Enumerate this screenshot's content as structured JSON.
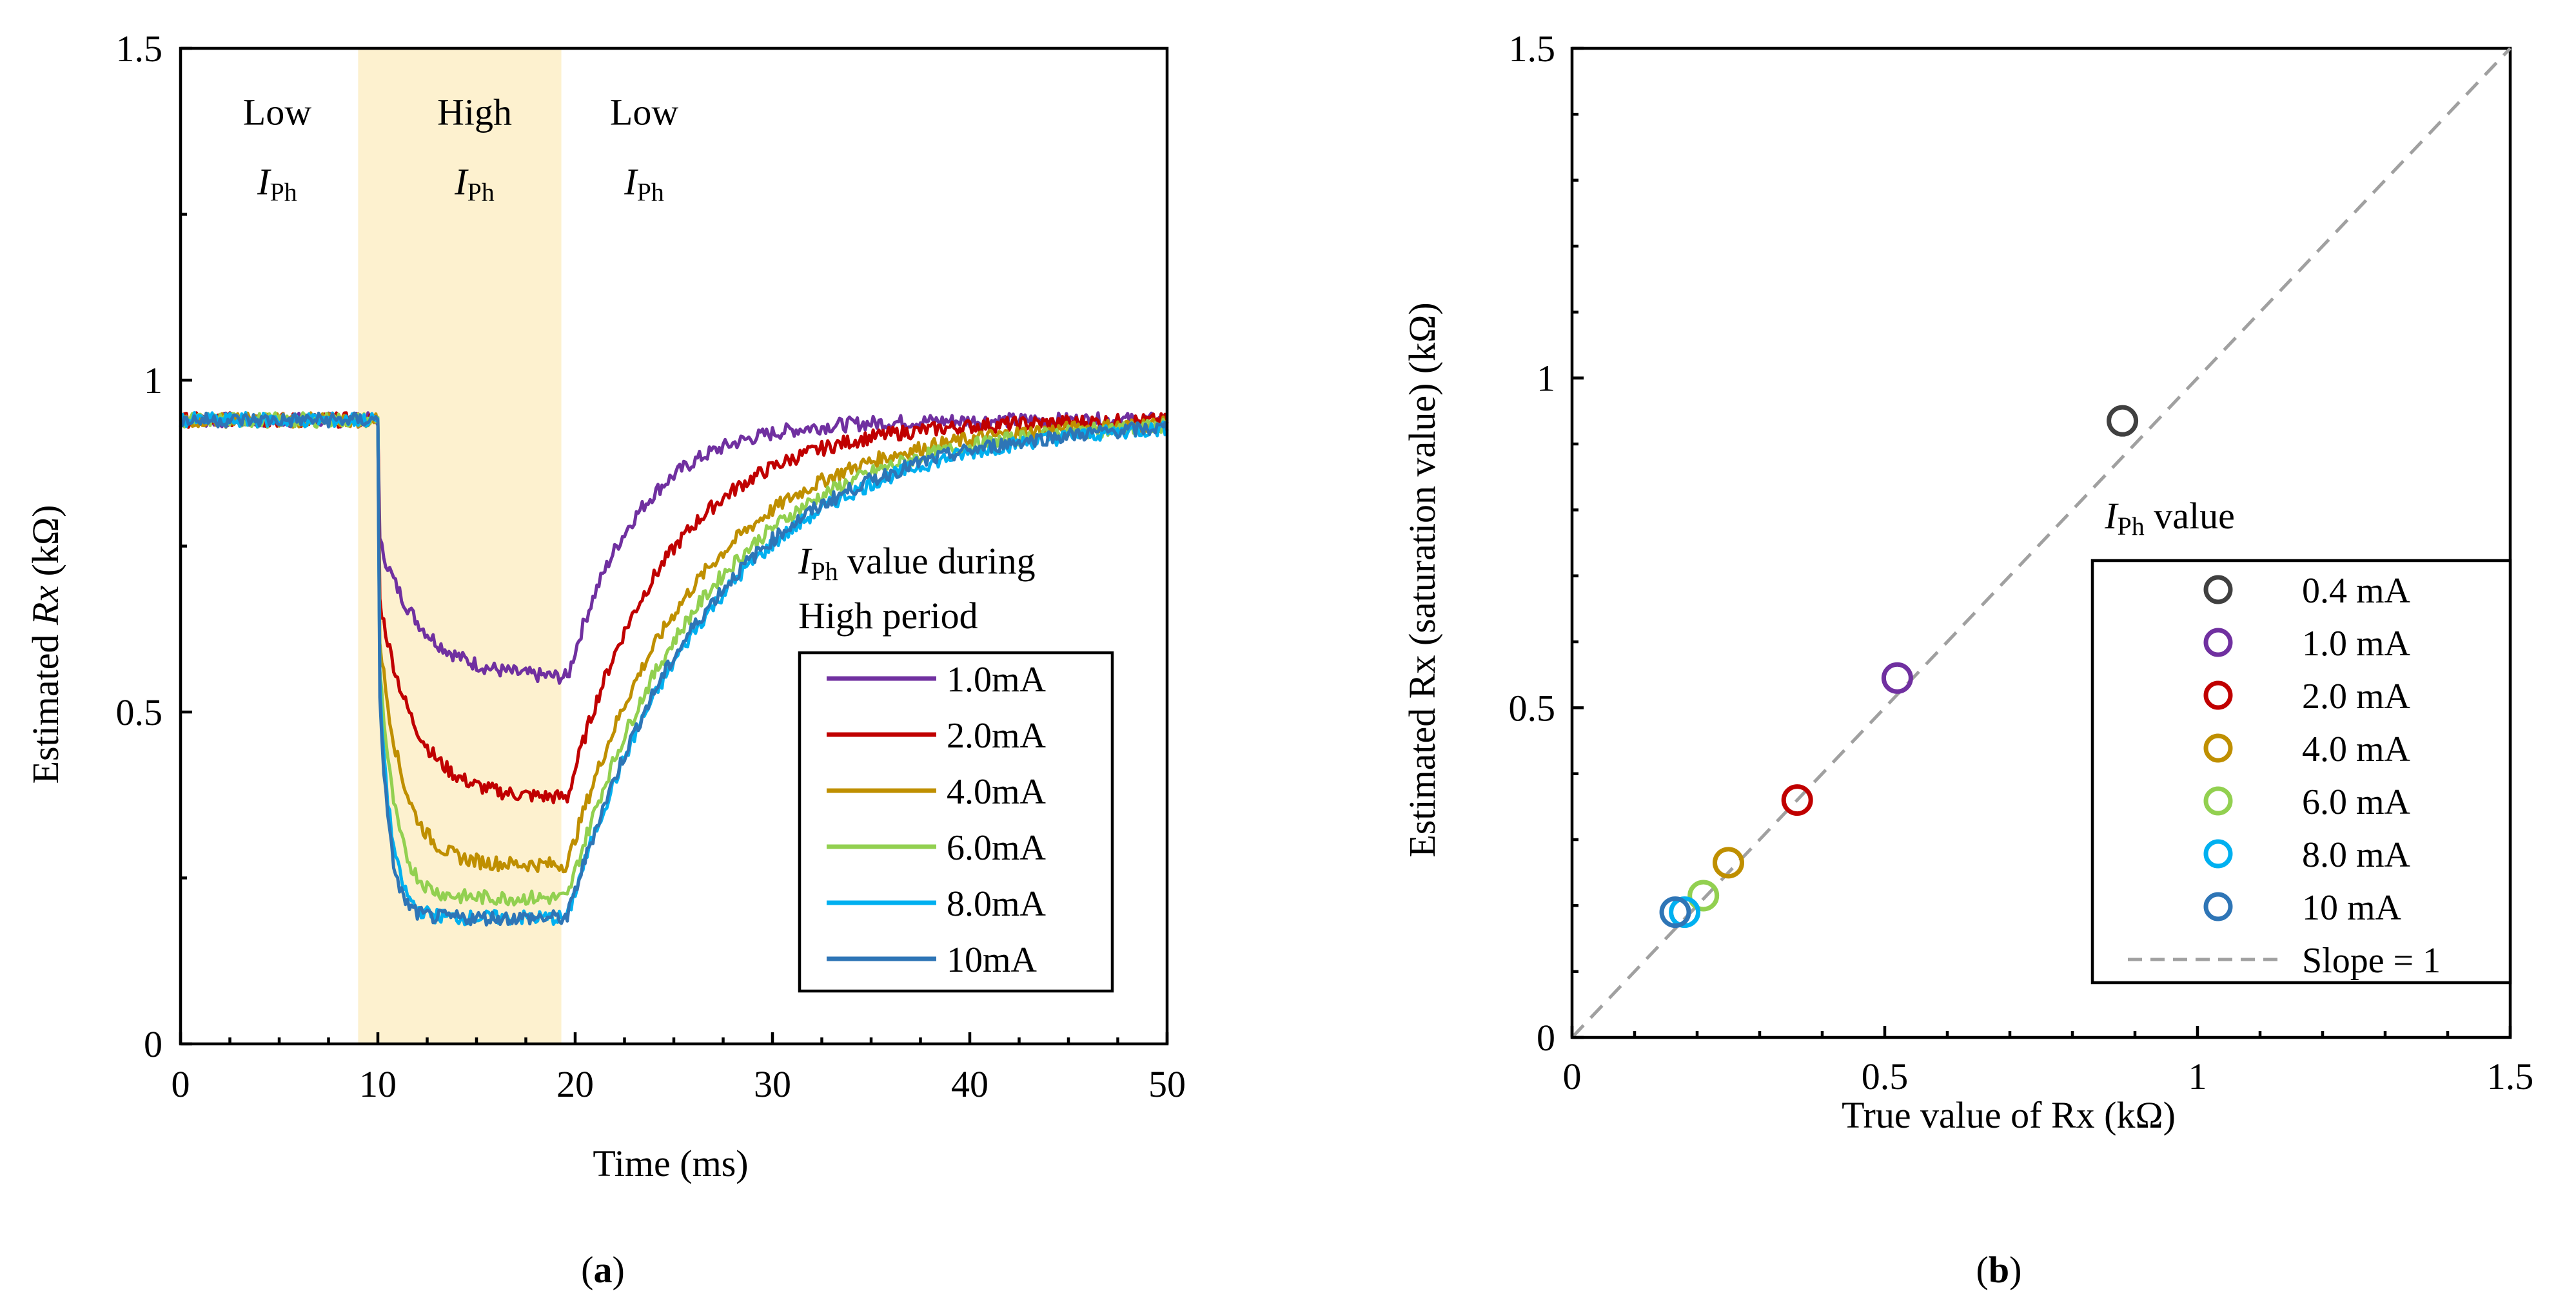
{
  "chart_data": [
    {
      "id": "a",
      "type": "line",
      "panel_label": "a",
      "xlabel": "Time (ms)",
      "ylabel_prefix": "Estimated ",
      "ylabel_var": "Rx",
      "ylabel_suffix": " (kΩ)",
      "xlim": [
        0,
        50
      ],
      "ylim": [
        0,
        1.5
      ],
      "xticks": [
        0,
        10,
        20,
        30,
        40,
        50
      ],
      "yticks": [
        0,
        0.5,
        1,
        1.5
      ],
      "ytick_labels": [
        "0",
        "0.5",
        "1",
        "1.5"
      ],
      "shaded_region": {
        "x_start": 9,
        "x_end": 19.3,
        "color": "#fdf1cf"
      },
      "annotations": [
        {
          "line1": "Low",
          "line2_var": "I",
          "line2_sub": "Ph"
        },
        {
          "line1": "High",
          "line2_var": "I",
          "line2_sub": "Ph"
        },
        {
          "line1": "Low",
          "line2_var": "I",
          "line2_sub": "Ph"
        }
      ],
      "legend_title": {
        "var": "I",
        "sub": "Ph",
        "text1": " value during",
        "text2": "High period"
      },
      "series": [
        {
          "name": "1.0mA",
          "color": "#7030a0",
          "baseline": 0.94,
          "plateau": 0.55,
          "rec_tau": 3.5,
          "drop_tau": 2.2
        },
        {
          "name": "2.0mA",
          "color": "#c00000",
          "baseline": 0.94,
          "plateau": 0.37,
          "rec_tau": 5.0,
          "drop_tau": 1.8
        },
        {
          "name": "4.0mA",
          "color": "#bf8f00",
          "baseline": 0.94,
          "plateau": 0.27,
          "rec_tau": 6.5,
          "drop_tau": 1.2
        },
        {
          "name": "6.0mA",
          "color": "#92d050",
          "baseline": 0.94,
          "plateau": 0.22,
          "rec_tau": 7.0,
          "drop_tau": 0.8
        },
        {
          "name": "8.0mA",
          "color": "#00b0f0",
          "baseline": 0.94,
          "plateau": 0.19,
          "rec_tau": 7.5,
          "drop_tau": 0.6
        },
        {
          "name": "10mA",
          "color": "#2e75b6",
          "baseline": 0.94,
          "plateau": 0.19,
          "rec_tau": 7.3,
          "drop_tau": 0.5
        }
      ]
    },
    {
      "id": "b",
      "type": "scatter",
      "panel_label": "b",
      "xlabel": "True value of Rx (kΩ)",
      "ylabel": "Estimated Rx (saturation value) (kΩ)",
      "xlim": [
        0,
        1.5
      ],
      "ylim": [
        0,
        1.5
      ],
      "xticks": [
        0,
        0.5,
        1,
        1.5
      ],
      "yticks": [
        0,
        0.5,
        1,
        1.5
      ],
      "tick_labels": [
        "0",
        "0.5",
        "1",
        "1.5"
      ],
      "legend_title": {
        "var": "I",
        "sub": "Ph",
        "text": " value"
      },
      "series": [
        {
          "name": "0.4 mA",
          "color": "#404040",
          "x": 0.88,
          "y": 0.935
        },
        {
          "name": "1.0 mA",
          "color": "#7030a0",
          "x": 0.52,
          "y": 0.545
        },
        {
          "name": "2.0 mA",
          "color": "#c00000",
          "x": 0.36,
          "y": 0.36
        },
        {
          "name": "4.0 mA",
          "color": "#bf8f00",
          "x": 0.25,
          "y": 0.265
        },
        {
          "name": "6.0 mA",
          "color": "#92d050",
          "x": 0.21,
          "y": 0.215
        },
        {
          "name": "8.0 mA",
          "color": "#00b0f0",
          "x": 0.18,
          "y": 0.19
        },
        {
          "name": "10 mA",
          "color": "#2e75b6",
          "x": 0.165,
          "y": 0.19
        }
      ],
      "reference_line": {
        "name": "Slope = 1",
        "color": "#a0a0a0",
        "from": [
          0,
          0
        ],
        "to": [
          1.5,
          1.5
        ]
      }
    }
  ]
}
